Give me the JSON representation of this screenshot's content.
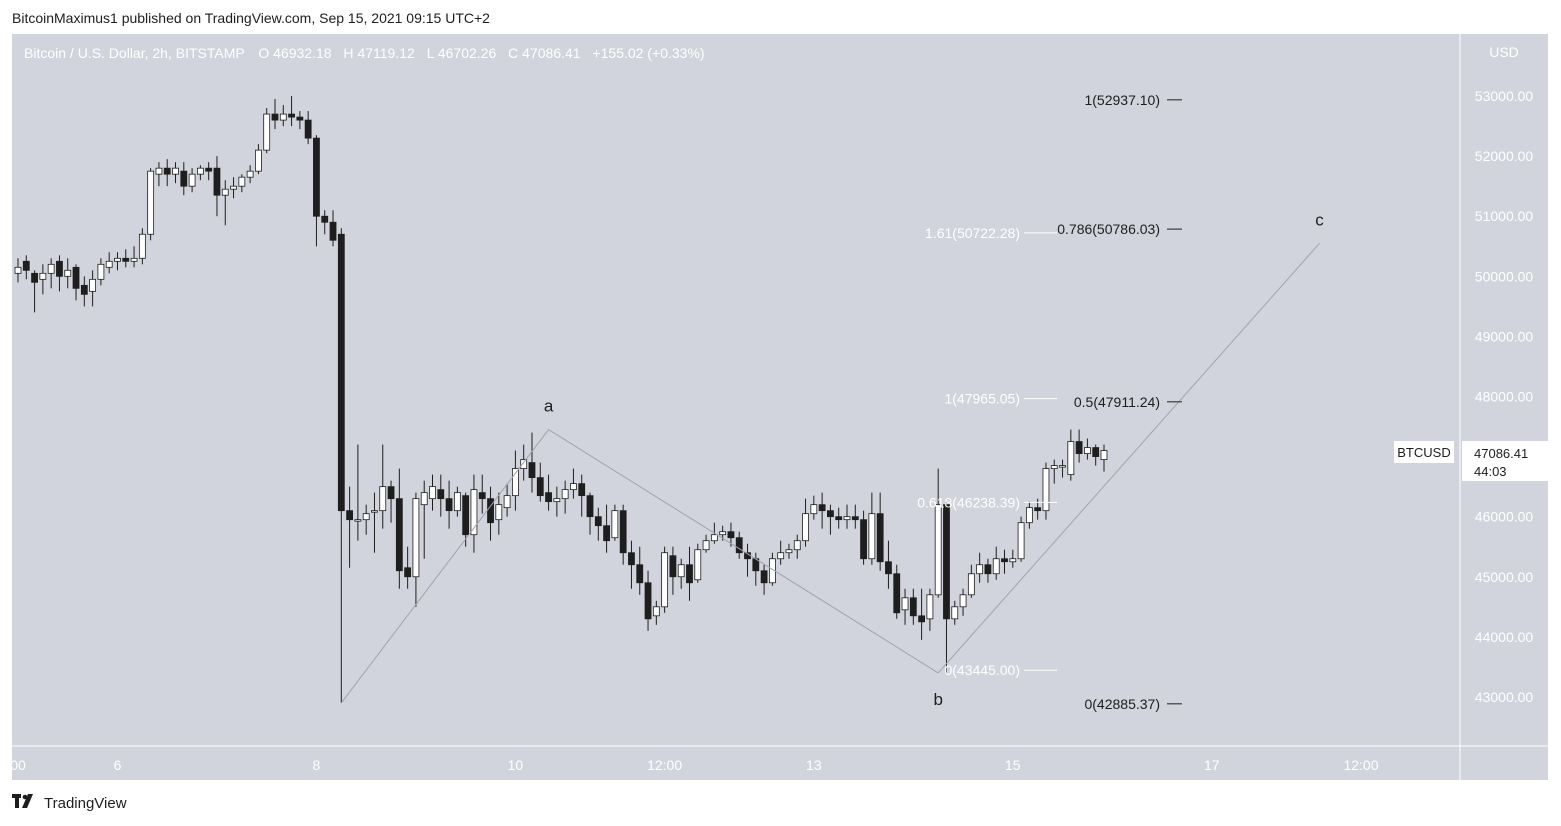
{
  "header": {
    "published_text": "BitcoinMaximus1 published on TradingView.com, Sep 15, 2021 09:15 UTC+2"
  },
  "legend": {
    "symbol": "Bitcoin / U.S. Dollar, 2h, BITSTAMP",
    "o_label": "O",
    "o_value": "46932.18",
    "h_label": "H",
    "h_value": "47119.12",
    "l_label": "L",
    "l_value": "46702.26",
    "c_label": "C",
    "c_value": "47086.41",
    "change": "+155.02 (+0.33%)"
  },
  "footer": {
    "brand": "TradingView"
  },
  "colors": {
    "panel": "#d1d4dc",
    "axis_text": "#ffffff",
    "candle_up": "#ffffff",
    "candle_down": "#1e1e1e",
    "wick": "#1e1e1e",
    "wave_line": "#a0a3ab",
    "fib_line": "#ffffff"
  },
  "chart_data": {
    "type": "candlestick",
    "currency": "USD",
    "symbol_tag": "BTCUSD",
    "last_price": "47086.41",
    "countdown": "44:03",
    "y_ticks": [
      "53000.00",
      "52000.00",
      "51000.00",
      "50000.00",
      "49000.00",
      "48000.00",
      "47000.00",
      "46000.00",
      "45000.00",
      "44000.00",
      "43000.00"
    ],
    "ylim": [
      42300,
      53700
    ],
    "x_ticks": [
      {
        "label": "00",
        "i": 0
      },
      {
        "label": "6",
        "i": 12
      },
      {
        "label": "8",
        "i": 36
      },
      {
        "label": "10",
        "i": 60
      },
      {
        "label": "12:00",
        "i": 78
      },
      {
        "label": "13",
        "i": 96
      },
      {
        "label": "15",
        "i": 120
      },
      {
        "label": "17",
        "i": 144
      },
      {
        "label": "12:00",
        "i": 162
      }
    ],
    "candles": [
      [
        50050,
        50150,
        49900,
        50300
      ],
      [
        50250,
        50100,
        49950,
        50350
      ],
      [
        50050,
        49900,
        49400,
        50100
      ],
      [
        49950,
        50050,
        49700,
        50200
      ],
      [
        50050,
        50200,
        49800,
        50300
      ],
      [
        50250,
        50000,
        49750,
        50350
      ],
      [
        50000,
        50100,
        49800,
        50300
      ],
      [
        50150,
        49800,
        49600,
        50200
      ],
      [
        49850,
        49700,
        49500,
        50000
      ],
      [
        49750,
        49950,
        49500,
        50100
      ],
      [
        49950,
        50200,
        49850,
        50300
      ],
      [
        50150,
        50250,
        50050,
        50400
      ],
      [
        50250,
        50300,
        50100,
        50400
      ],
      [
        50300,
        50250,
        50150,
        50450
      ],
      [
        50250,
        50300,
        50150,
        50500
      ],
      [
        50300,
        50700,
        50200,
        50800
      ],
      [
        50700,
        51750,
        50600,
        51800
      ],
      [
        51700,
        51800,
        51500,
        51900
      ],
      [
        51800,
        51700,
        51500,
        51950
      ],
      [
        51700,
        51800,
        51550,
        51900
      ],
      [
        51750,
        51500,
        51350,
        51900
      ],
      [
        51500,
        51700,
        51400,
        51800
      ],
      [
        51700,
        51800,
        51600,
        51850
      ],
      [
        51800,
        51750,
        51600,
        51900
      ],
      [
        51800,
        51350,
        51000,
        52000
      ],
      [
        51350,
        51450,
        50850,
        51600
      ],
      [
        51450,
        51500,
        51300,
        51650
      ],
      [
        51500,
        51650,
        51400,
        51700
      ],
      [
        51650,
        51750,
        51550,
        51850
      ],
      [
        51750,
        52100,
        51700,
        52200
      ],
      [
        52100,
        52700,
        52050,
        52800
      ],
      [
        52700,
        52600,
        52450,
        52950
      ],
      [
        52600,
        52700,
        52500,
        52850
      ],
      [
        52700,
        52650,
        52500,
        53000
      ],
      [
        52650,
        52600,
        52450,
        52750
      ],
      [
        52600,
        52300,
        52200,
        52750
      ],
      [
        52300,
        51000,
        50500,
        52350
      ],
      [
        51000,
        50900,
        50700,
        51100
      ],
      [
        50900,
        50600,
        50500,
        51100
      ],
      [
        50700,
        46100,
        42900,
        50800
      ],
      [
        46100,
        45950,
        45150,
        46500
      ],
      [
        45950,
        45950,
        45600,
        47200
      ],
      [
        45950,
        46050,
        45700,
        46200
      ],
      [
        46100,
        46100,
        45400,
        46400
      ],
      [
        46100,
        46500,
        45800,
        47200
      ],
      [
        46500,
        46300,
        45900,
        46600
      ],
      [
        46300,
        45100,
        44800,
        46800
      ],
      [
        45150,
        45000,
        44800,
        45500
      ],
      [
        45000,
        46300,
        44500,
        46400
      ],
      [
        46200,
        46400,
        45300,
        46600
      ],
      [
        46300,
        46500,
        46100,
        46700
      ],
      [
        46450,
        46300,
        46000,
        46700
      ],
      [
        46300,
        46100,
        45800,
        46600
      ],
      [
        46100,
        46400,
        46000,
        46500
      ],
      [
        46350,
        45700,
        45500,
        46400
      ],
      [
        45700,
        46450,
        45400,
        46700
      ],
      [
        46400,
        46300,
        46050,
        46700
      ],
      [
        46300,
        45900,
        45600,
        46500
      ],
      [
        45950,
        46200,
        45700,
        46400
      ],
      [
        46150,
        46350,
        46000,
        46550
      ],
      [
        46350,
        46800,
        46100,
        47100
      ],
      [
        46800,
        46950,
        46600,
        47200
      ],
      [
        46900,
        46650,
        46400,
        47400
      ],
      [
        46650,
        46350,
        46250,
        46900
      ],
      [
        46400,
        46250,
        46100,
        46700
      ],
      [
        46250,
        46300,
        46000,
        46500
      ],
      [
        46300,
        46450,
        46050,
        46600
      ],
      [
        46450,
        46550,
        46300,
        46800
      ],
      [
        46550,
        46350,
        46000,
        46700
      ],
      [
        46350,
        46000,
        45700,
        46400
      ],
      [
        46000,
        45850,
        45600,
        46150
      ],
      [
        45850,
        45600,
        45400,
        46200
      ],
      [
        45650,
        46100,
        45600,
        46200
      ],
      [
        46100,
        45400,
        45200,
        46200
      ],
      [
        45400,
        45200,
        44800,
        45600
      ],
      [
        45200,
        44900,
        44700,
        45500
      ],
      [
        44900,
        44300,
        44100,
        45100
      ],
      [
        44350,
        44500,
        44200,
        44600
      ],
      [
        44500,
        45400,
        44400,
        45500
      ],
      [
        45350,
        45000,
        44700,
        45500
      ],
      [
        45000,
        45200,
        44800,
        45300
      ],
      [
        45200,
        44900,
        44600,
        45500
      ],
      [
        44950,
        45450,
        44900,
        45550
      ],
      [
        45450,
        45600,
        45400,
        45700
      ],
      [
        45600,
        45700,
        45550,
        45900
      ],
      [
        45700,
        45750,
        45600,
        45850
      ],
      [
        45750,
        45650,
        45500,
        45900
      ],
      [
        45650,
        45400,
        45300,
        45750
      ],
      [
        45400,
        45300,
        45000,
        45550
      ],
      [
        45300,
        45100,
        44850,
        45400
      ],
      [
        45100,
        44900,
        44700,
        45200
      ],
      [
        44900,
        45300,
        44850,
        45400
      ],
      [
        45300,
        45400,
        45200,
        45600
      ],
      [
        45400,
        45450,
        45300,
        45550
      ],
      [
        45450,
        45600,
        45300,
        45700
      ],
      [
        45600,
        46050,
        45500,
        46300
      ],
      [
        46050,
        46200,
        45950,
        46350
      ],
      [
        46200,
        46100,
        45800,
        46400
      ],
      [
        46100,
        46000,
        45700,
        46200
      ],
      [
        46000,
        45950,
        45800,
        46150
      ],
      [
        45950,
        46000,
        45800,
        46200
      ],
      [
        46000,
        45950,
        45800,
        46200
      ],
      [
        45950,
        45300,
        45200,
        46100
      ],
      [
        45300,
        46050,
        45200,
        46400
      ],
      [
        46050,
        45250,
        45100,
        46400
      ],
      [
        45250,
        45050,
        44800,
        45600
      ],
      [
        45050,
        44400,
        44300,
        45200
      ],
      [
        44450,
        44650,
        44200,
        44800
      ],
      [
        44650,
        44350,
        44200,
        44800
      ],
      [
        44350,
        44250,
        43950,
        44800
      ],
      [
        44300,
        44700,
        44100,
        44800
      ],
      [
        44700,
        46200,
        44650,
        46800
      ],
      [
        46200,
        44300,
        43400,
        46250
      ],
      [
        44300,
        44500,
        44200,
        44600
      ],
      [
        44500,
        44700,
        44350,
        44800
      ],
      [
        44700,
        45050,
        44650,
        45200
      ],
      [
        45050,
        45200,
        44900,
        45400
      ],
      [
        45200,
        45050,
        44900,
        45300
      ],
      [
        45050,
        45300,
        44950,
        45500
      ],
      [
        45300,
        45250,
        45050,
        45450
      ],
      [
        45250,
        45300,
        45150,
        45450
      ],
      [
        45300,
        45900,
        45250,
        46000
      ],
      [
        45900,
        46150,
        45800,
        46250
      ],
      [
        46150,
        46100,
        45950,
        46300
      ],
      [
        46100,
        46800,
        45950,
        46900
      ],
      [
        46800,
        46850,
        46550,
        46950
      ],
      [
        46850,
        46850,
        46650,
        46950
      ],
      [
        46700,
        47250,
        46600,
        47450
      ],
      [
        47250,
        47050,
        46900,
        47450
      ],
      [
        47050,
        47150,
        46950,
        47300
      ],
      [
        47150,
        47000,
        46850,
        47200
      ],
      [
        46950,
        47100,
        46750,
        47200
      ]
    ],
    "waves": [
      {
        "label": "a",
        "i": 64,
        "value": 47450
      },
      {
        "label": "b",
        "i": 111,
        "value": 43400
      },
      {
        "label": "c",
        "i": 157,
        "value": 50550
      }
    ],
    "fib_levels": [
      {
        "label": "1(52937.10)",
        "value": 52937.1,
        "group": "right"
      },
      {
        "label": "0.786(50786.03)",
        "value": 50786.03,
        "group": "right"
      },
      {
        "label": "1.61(50722.28)",
        "value": 50722.28,
        "group": "left"
      },
      {
        "label": "1(47965.05)",
        "value": 47965.05,
        "group": "left"
      },
      {
        "label": "0.5(47911.24)",
        "value": 47911.24,
        "group": "right"
      },
      {
        "label": "0.618(46238.39)",
        "value": 46238.39,
        "group": "left"
      },
      {
        "label": "0(43445.00)",
        "value": 43445.0,
        "group": "left"
      },
      {
        "label": "0(42885.37)",
        "value": 42885.37,
        "group": "right"
      }
    ]
  }
}
